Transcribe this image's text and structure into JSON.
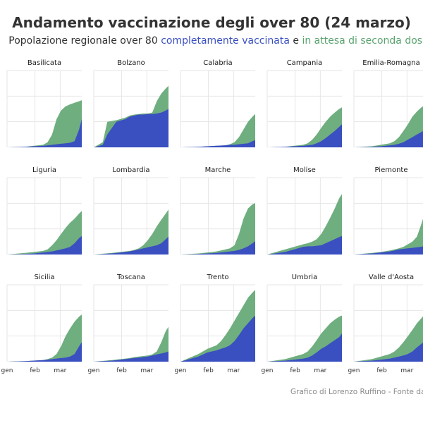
{
  "header": {
    "title": "Andamento vaccinazione degli over 80 (24 marzo)",
    "subtitle_prefix": "Popolazione regionale over 80 ",
    "subtitle_blue": "completamente vaccinata",
    "subtitle_mid": " e ",
    "subtitle_green": "in attesa di seconda dose"
  },
  "caption": "Grafico di Lorenzo Ruffino - Fonte dati:",
  "colors": {
    "completamente_vaccinata": "#3a4fc0",
    "in_attesa_seconda_dose": "#6fae7f",
    "grid": "#e6e6e6"
  },
  "chart_data": {
    "type": "area",
    "stacked": true,
    "x_ticks": [
      {
        "label": "gen",
        "day": 0
      },
      {
        "label": "feb",
        "day": 31
      },
      {
        "label": "mar",
        "day": 59
      }
    ],
    "x_range": [
      0,
      83
    ],
    "y_range": [
      0,
      1
    ],
    "grid": true,
    "panels": [
      {
        "name": "Basilicata",
        "x": [
          0,
          20,
          30,
          40,
          45,
          50,
          55,
          60,
          65,
          70,
          75,
          80,
          83
        ],
        "complete": [
          0,
          0.01,
          0.02,
          0.03,
          0.04,
          0.05,
          0.06,
          0.07,
          0.08,
          0.09,
          0.12,
          0.35,
          0.55
        ],
        "first": [
          0,
          0.01,
          0.03,
          0.05,
          0.1,
          0.25,
          0.55,
          0.72,
          0.8,
          0.84,
          0.87,
          0.9,
          0.92
        ]
      },
      {
        "name": "Bolzano",
        "x": [
          0,
          10,
          15,
          25,
          35,
          40,
          45,
          50,
          55,
          60,
          65,
          70,
          75,
          80,
          83
        ],
        "complete": [
          0,
          0.05,
          0.25,
          0.5,
          0.55,
          0.6,
          0.62,
          0.64,
          0.64,
          0.65,
          0.65,
          0.66,
          0.68,
          0.72,
          0.75
        ],
        "first": [
          0,
          0.1,
          0.5,
          0.53,
          0.58,
          0.62,
          0.64,
          0.65,
          0.66,
          0.66,
          0.68,
          0.9,
          1.05,
          1.15,
          1.2
        ]
      },
      {
        "name": "Calabria",
        "x": [
          0,
          20,
          30,
          40,
          50,
          55,
          60,
          65,
          70,
          75,
          80,
          83
        ],
        "complete": [
          0,
          0.01,
          0.02,
          0.03,
          0.04,
          0.05,
          0.05,
          0.06,
          0.07,
          0.08,
          0.12,
          0.14
        ],
        "first": [
          0,
          0.01,
          0.02,
          0.03,
          0.04,
          0.06,
          0.1,
          0.2,
          0.35,
          0.5,
          0.6,
          0.65
        ]
      },
      {
        "name": "Campania",
        "x": [
          0,
          20,
          30,
          40,
          45,
          50,
          55,
          60,
          65,
          70,
          75,
          80,
          83
        ],
        "complete": [
          0,
          0.01,
          0.02,
          0.03,
          0.04,
          0.05,
          0.08,
          0.12,
          0.18,
          0.25,
          0.32,
          0.4,
          0.45
        ],
        "first": [
          0,
          0.01,
          0.03,
          0.05,
          0.08,
          0.15,
          0.25,
          0.38,
          0.5,
          0.6,
          0.68,
          0.75,
          0.78
        ]
      },
      {
        "name": "Emilia-Romagna",
        "x": [
          0,
          20,
          30,
          40,
          45,
          50,
          55,
          60,
          65,
          70,
          75,
          80,
          83
        ],
        "complete": [
          0,
          0.01,
          0.02,
          0.04,
          0.05,
          0.07,
          0.1,
          0.15,
          0.2,
          0.25,
          0.3,
          0.35,
          0.4
        ],
        "first": [
          0,
          0.02,
          0.05,
          0.08,
          0.12,
          0.2,
          0.32,
          0.45,
          0.6,
          0.7,
          0.78,
          0.84,
          0.88
        ]
      },
      {
        "name": "Liguria",
        "x": [
          0,
          20,
          30,
          40,
          45,
          50,
          55,
          60,
          65,
          70,
          75,
          80,
          83
        ],
        "complete": [
          0,
          0.01,
          0.02,
          0.04,
          0.05,
          0.06,
          0.08,
          0.1,
          0.12,
          0.15,
          0.22,
          0.32,
          0.36
        ],
        "first": [
          0,
          0.03,
          0.05,
          0.07,
          0.1,
          0.18,
          0.28,
          0.4,
          0.52,
          0.62,
          0.7,
          0.8,
          0.85
        ]
      },
      {
        "name": "Lombardia",
        "x": [
          0,
          20,
          30,
          40,
          45,
          50,
          55,
          60,
          65,
          70,
          75,
          80,
          83
        ],
        "complete": [
          0,
          0.02,
          0.04,
          0.06,
          0.08,
          0.1,
          0.12,
          0.14,
          0.16,
          0.18,
          0.22,
          0.3,
          0.35
        ],
        "first": [
          0,
          0.03,
          0.05,
          0.07,
          0.09,
          0.12,
          0.18,
          0.28,
          0.4,
          0.55,
          0.68,
          0.8,
          0.88
        ]
      },
      {
        "name": "Marche",
        "x": [
          0,
          20,
          30,
          40,
          45,
          50,
          55,
          60,
          65,
          70,
          75,
          80,
          83
        ],
        "complete": [
          0,
          0.01,
          0.02,
          0.03,
          0.04,
          0.05,
          0.06,
          0.07,
          0.09,
          0.12,
          0.16,
          0.22,
          0.26
        ],
        "first": [
          0,
          0.02,
          0.04,
          0.06,
          0.08,
          0.1,
          0.12,
          0.18,
          0.4,
          0.7,
          0.9,
          0.98,
          1.0
        ]
      },
      {
        "name": "Molise",
        "x": [
          0,
          20,
          30,
          40,
          45,
          50,
          55,
          60,
          65,
          70,
          75,
          80,
          83
        ],
        "complete": [
          0,
          0.05,
          0.1,
          0.15,
          0.16,
          0.16,
          0.17,
          0.18,
          0.22,
          0.26,
          0.3,
          0.34,
          0.36
        ],
        "first": [
          0,
          0.1,
          0.15,
          0.2,
          0.22,
          0.25,
          0.3,
          0.4,
          0.55,
          0.72,
          0.9,
          1.1,
          1.18
        ]
      },
      {
        "name": "Piemonte",
        "x": [
          0,
          20,
          30,
          40,
          45,
          50,
          55,
          60,
          65,
          70,
          75,
          80,
          83
        ],
        "complete": [
          0,
          0.02,
          0.04,
          0.06,
          0.08,
          0.1,
          0.11,
          0.12,
          0.13,
          0.14,
          0.15,
          0.18,
          0.2
        ],
        "first": [
          0,
          0.03,
          0.05,
          0.08,
          0.1,
          0.12,
          0.15,
          0.2,
          0.25,
          0.35,
          0.6,
          0.88,
          0.95
        ]
      },
      {
        "name": "Sicilia",
        "x": [
          0,
          20,
          30,
          40,
          45,
          50,
          55,
          60,
          65,
          70,
          75,
          80,
          83
        ],
        "complete": [
          0,
          0.01,
          0.02,
          0.03,
          0.04,
          0.05,
          0.06,
          0.07,
          0.08,
          0.1,
          0.15,
          0.3,
          0.38
        ],
        "first": [
          0,
          0.01,
          0.02,
          0.03,
          0.05,
          0.08,
          0.15,
          0.3,
          0.5,
          0.65,
          0.78,
          0.88,
          0.92
        ]
      },
      {
        "name": "Toscana",
        "x": [
          0,
          20,
          30,
          40,
          45,
          50,
          55,
          60,
          65,
          70,
          75,
          80,
          83
        ],
        "complete": [
          0,
          0.02,
          0.04,
          0.06,
          0.07,
          0.08,
          0.09,
          0.1,
          0.12,
          0.14,
          0.16,
          0.18,
          0.2
        ],
        "first": [
          0,
          0.03,
          0.05,
          0.07,
          0.09,
          0.1,
          0.11,
          0.12,
          0.14,
          0.2,
          0.38,
          0.6,
          0.68
        ]
      },
      {
        "name": "Trento",
        "x": [
          0,
          20,
          30,
          40,
          45,
          50,
          55,
          60,
          65,
          70,
          75,
          80,
          83
        ],
        "complete": [
          0,
          0.1,
          0.18,
          0.22,
          0.25,
          0.28,
          0.32,
          0.4,
          0.52,
          0.65,
          0.75,
          0.85,
          0.9
        ],
        "first": [
          0,
          0.15,
          0.25,
          0.32,
          0.4,
          0.52,
          0.65,
          0.8,
          0.95,
          1.1,
          1.25,
          1.35,
          1.4
        ]
      },
      {
        "name": "Umbria",
        "x": [
          0,
          20,
          30,
          40,
          45,
          50,
          55,
          60,
          65,
          70,
          75,
          80,
          83
        ],
        "complete": [
          0,
          0.02,
          0.04,
          0.06,
          0.08,
          0.12,
          0.18,
          0.25,
          0.3,
          0.36,
          0.42,
          0.48,
          0.55
        ],
        "first": [
          0,
          0.05,
          0.1,
          0.15,
          0.2,
          0.3,
          0.42,
          0.55,
          0.65,
          0.75,
          0.82,
          0.88,
          0.9
        ]
      },
      {
        "name": "Valle d'Aosta",
        "x": [
          0,
          20,
          30,
          40,
          45,
          50,
          55,
          60,
          65,
          70,
          75,
          80,
          83
        ],
        "complete": [
          0,
          0.02,
          0.04,
          0.06,
          0.08,
          0.1,
          0.12,
          0.15,
          0.2,
          0.28,
          0.35,
          0.42,
          0.45
        ],
        "first": [
          0,
          0.05,
          0.1,
          0.15,
          0.2,
          0.28,
          0.38,
          0.5,
          0.62,
          0.75,
          0.85,
          0.95,
          1.05
        ]
      }
    ]
  }
}
